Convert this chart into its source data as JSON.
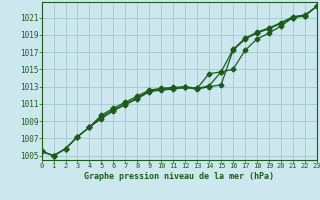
{
  "title": "Graphe pression niveau de la mer (hPa)",
  "bg_color": "#cce8ee",
  "grid_color": "#aacccc",
  "line_color": "#1a5c1a",
  "line1": [
    1005.5,
    1005.0,
    1005.8,
    1007.2,
    1008.3,
    1009.3,
    1010.2,
    1010.9,
    1011.6,
    1012.4,
    1012.6,
    1012.7,
    1012.9,
    1012.7,
    1013.0,
    1013.2,
    1017.2,
    1018.5,
    1019.2,
    1019.7,
    1020.3,
    1021.0,
    1021.2,
    1022.3
  ],
  "line2": [
    1005.5,
    1005.0,
    1005.8,
    1007.2,
    1008.3,
    1009.7,
    1010.5,
    1011.2,
    1011.9,
    1012.6,
    1012.8,
    1012.9,
    1013.0,
    1012.8,
    1013.1,
    1014.7,
    1017.3,
    1018.6,
    1019.3,
    1019.8,
    1020.4,
    1021.1,
    1021.3,
    1022.3
  ],
  "line3": [
    1005.5,
    1005.0,
    1005.8,
    1007.2,
    1008.3,
    1009.5,
    1010.3,
    1011.0,
    1011.7,
    1012.5,
    1012.7,
    1012.8,
    1012.9,
    1012.8,
    1014.5,
    1014.7,
    1015.0,
    1017.2,
    1018.5,
    1019.2,
    1020.0,
    1021.0,
    1021.2,
    1022.3
  ],
  "xlim": [
    0,
    23
  ],
  "ylim": [
    1004.5,
    1022.8
  ],
  "yticks": [
    1005,
    1007,
    1009,
    1011,
    1013,
    1015,
    1017,
    1019,
    1021
  ],
  "xticks": [
    0,
    1,
    2,
    3,
    4,
    5,
    6,
    7,
    8,
    9,
    10,
    11,
    12,
    13,
    14,
    15,
    16,
    17,
    18,
    19,
    20,
    21,
    22,
    23
  ],
  "marker": "D",
  "markersize": 2.5,
  "linewidth": 0.9,
  "xlabel_fontsize": 6.0,
  "tick_fontsize": 5.0,
  "ytick_fontsize": 5.5
}
